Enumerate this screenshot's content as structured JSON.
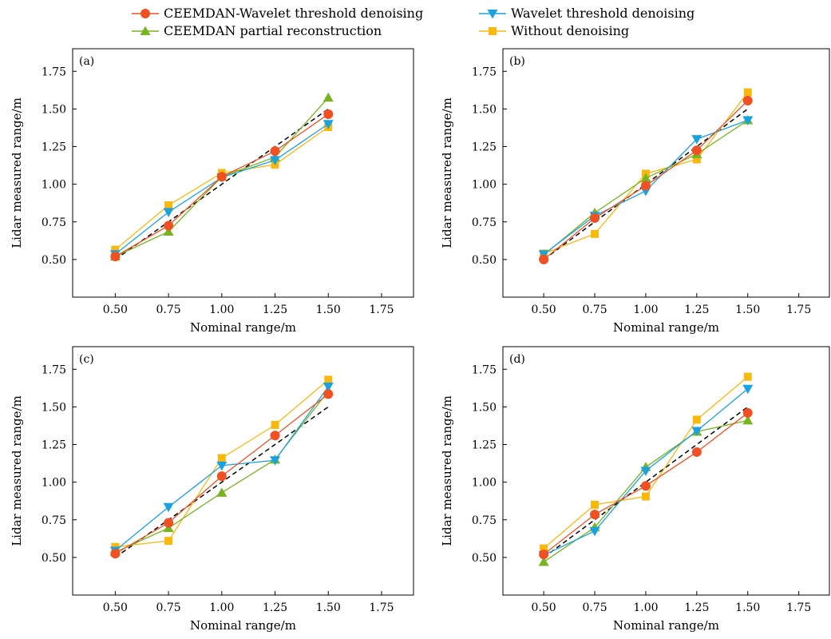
{
  "legend": {
    "items": [
      {
        "label": "CEEMDAN-Wavelet threshold denoising",
        "color": "#f05022",
        "marker": "circle"
      },
      {
        "label": "Wavelet threshold denoising",
        "color": "#1aa1e0",
        "marker": "triangle-down"
      },
      {
        "label": "CEEMDAN partial reconstruction",
        "color": "#78b41f",
        "marker": "triangle-up"
      },
      {
        "label": "Without denoising",
        "color": "#f8b80e",
        "marker": "square"
      }
    ]
  },
  "chart_data": [
    {
      "type": "line",
      "panel_label": "(a)",
      "xlabel": "Nominal range/m",
      "ylabel": "Lidar measured range/m",
      "xlim": [
        0.3,
        1.9
      ],
      "ylim": [
        0.25,
        1.9
      ],
      "xticks": [
        "0.50",
        "0.75",
        "1.00",
        "1.25",
        "1.50",
        "1.75"
      ],
      "yticks": [
        "0.50",
        "0.75",
        "1.00",
        "1.25",
        "1.50",
        "1.75"
      ],
      "reference_line": {
        "style": "dashed",
        "color": "#000000",
        "x": [
          0.5,
          1.5
        ],
        "y": [
          0.5,
          1.5
        ]
      },
      "x": [
        0.5,
        0.75,
        1.0,
        1.25,
        1.5
      ],
      "series": [
        {
          "name": "Without denoising",
          "values": [
            0.565,
            0.86,
            1.075,
            1.13,
            1.38
          ]
        },
        {
          "name": "CEEMDAN partial reconstruction",
          "values": [
            0.52,
            0.685,
            1.05,
            1.18,
            1.575
          ]
        },
        {
          "name": "Wavelet threshold denoising",
          "values": [
            0.535,
            0.815,
            1.045,
            1.16,
            1.4
          ]
        },
        {
          "name": "CEEMDAN-Wavelet threshold denoising",
          "values": [
            0.52,
            0.725,
            1.05,
            1.22,
            1.465
          ]
        }
      ]
    },
    {
      "type": "line",
      "panel_label": "(b)",
      "xlabel": "Nominal range/m",
      "ylabel": "Lidar measured range/m",
      "xlim": [
        0.3,
        1.9
      ],
      "ylim": [
        0.25,
        1.9
      ],
      "xticks": [
        "0.50",
        "0.75",
        "1.00",
        "1.25",
        "1.50",
        "1.75"
      ],
      "yticks": [
        "0.50",
        "0.75",
        "1.00",
        "1.25",
        "1.50",
        "1.75"
      ],
      "reference_line": {
        "style": "dashed",
        "color": "#000000",
        "x": [
          0.5,
          1.5
        ],
        "y": [
          0.5,
          1.5
        ]
      },
      "x": [
        0.5,
        0.75,
        1.0,
        1.25,
        1.5
      ],
      "series": [
        {
          "name": "Without denoising",
          "values": [
            0.54,
            0.67,
            1.07,
            1.165,
            1.61
          ]
        },
        {
          "name": "CEEMDAN partial reconstruction",
          "values": [
            0.53,
            0.81,
            1.04,
            1.2,
            1.425
          ]
        },
        {
          "name": "Wavelet threshold denoising",
          "values": [
            0.535,
            0.79,
            0.955,
            1.3,
            1.425
          ]
        },
        {
          "name": "CEEMDAN-Wavelet threshold denoising",
          "values": [
            0.5,
            0.775,
            0.99,
            1.225,
            1.555
          ]
        }
      ]
    },
    {
      "type": "line",
      "panel_label": "(c)",
      "xlabel": "Nominal range/m",
      "ylabel": "Lidar measured range/m",
      "xlim": [
        0.3,
        1.9
      ],
      "ylim": [
        0.25,
        1.9
      ],
      "xticks": [
        "0.50",
        "0.75",
        "1.00",
        "1.25",
        "1.50",
        "1.75"
      ],
      "yticks": [
        "0.50",
        "0.75",
        "1.00",
        "1.25",
        "1.50",
        "1.75"
      ],
      "reference_line": {
        "style": "dashed",
        "color": "#000000",
        "x": [
          0.5,
          1.5
        ],
        "y": [
          0.5,
          1.5
        ]
      },
      "x": [
        0.5,
        0.75,
        1.0,
        1.25,
        1.5
      ],
      "series": [
        {
          "name": "Without denoising",
          "values": [
            0.57,
            0.61,
            1.16,
            1.38,
            1.68
          ]
        },
        {
          "name": "CEEMDAN partial reconstruction",
          "values": [
            0.535,
            0.695,
            0.93,
            1.15,
            1.605
          ]
        },
        {
          "name": "Wavelet threshold denoising",
          "values": [
            0.545,
            0.835,
            1.11,
            1.145,
            1.635
          ]
        },
        {
          "name": "CEEMDAN-Wavelet threshold denoising",
          "values": [
            0.525,
            0.73,
            1.04,
            1.31,
            1.585
          ]
        }
      ]
    },
    {
      "type": "line",
      "panel_label": "(d)",
      "xlabel": "Nominal range/m",
      "ylabel": "Lidar measured range/m",
      "xlim": [
        0.3,
        1.9
      ],
      "ylim": [
        0.25,
        1.9
      ],
      "xticks": [
        "0.50",
        "0.75",
        "1.00",
        "1.25",
        "1.50",
        "1.75"
      ],
      "yticks": [
        "0.50",
        "0.75",
        "1.00",
        "1.25",
        "1.50",
        "1.75"
      ],
      "reference_line": {
        "style": "dashed",
        "color": "#000000",
        "x": [
          0.5,
          1.5
        ],
        "y": [
          0.5,
          1.5
        ]
      },
      "x": [
        0.5,
        0.75,
        1.0,
        1.25,
        1.5
      ],
      "series": [
        {
          "name": "Without denoising",
          "values": [
            0.56,
            0.85,
            0.905,
            1.415,
            1.7
          ]
        },
        {
          "name": "CEEMDAN partial reconstruction",
          "values": [
            0.47,
            0.7,
            1.1,
            1.335,
            1.41
          ]
        },
        {
          "name": "Wavelet threshold denoising",
          "values": [
            0.515,
            0.675,
            1.075,
            1.34,
            1.62
          ]
        },
        {
          "name": "CEEMDAN-Wavelet threshold denoising",
          "values": [
            0.52,
            0.785,
            0.975,
            1.2,
            1.46
          ]
        }
      ]
    }
  ]
}
